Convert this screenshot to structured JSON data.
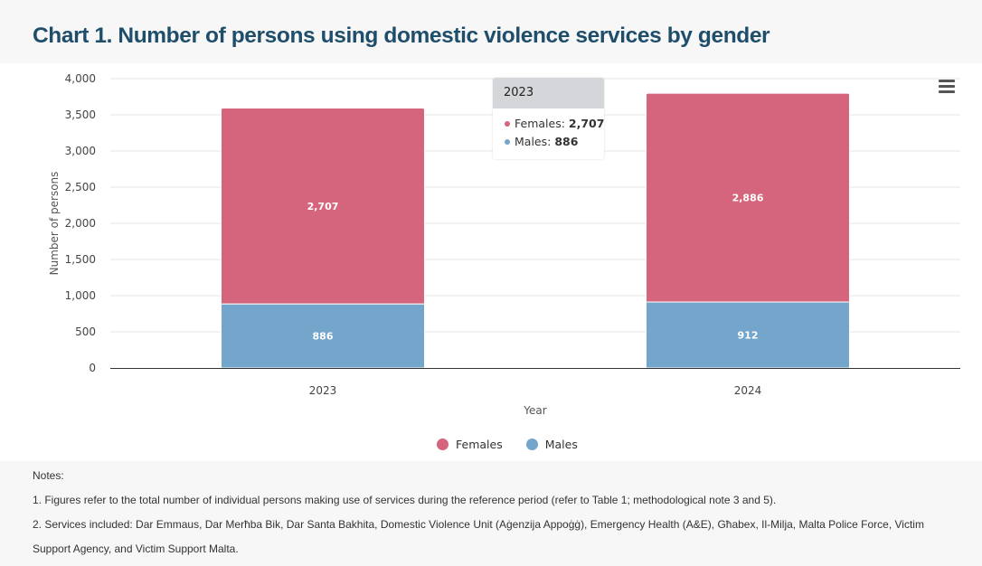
{
  "title": "Chart 1. Number of persons using domestic violence services by gender",
  "menu": {
    "icon": "hamburger-menu-icon"
  },
  "tooltip": {
    "header": "2023",
    "rows": [
      {
        "label": "Females: ",
        "value": "2,707"
      },
      {
        "label": "Males: ",
        "value": "886"
      }
    ]
  },
  "colors": {
    "females": "#d5657c",
    "males": "#74a5cb"
  },
  "chart_data": {
    "type": "bar",
    "stacked": true,
    "title": "Chart 1. Number of persons using domestic violence services by gender",
    "xlabel": "Year",
    "ylabel": "Number of persons",
    "categories": [
      "2023",
      "2024"
    ],
    "series": [
      {
        "name": "Males",
        "values": [
          886,
          912
        ],
        "labels": [
          "886",
          "912"
        ],
        "color": "#74a5cb"
      },
      {
        "name": "Females",
        "values": [
          2707,
          2886
        ],
        "labels": [
          "2,707",
          "2,886"
        ],
        "color": "#d5657c"
      }
    ],
    "ylim": [
      0,
      4000
    ],
    "yticks": [
      0,
      500,
      1000,
      1500,
      2000,
      2500,
      3000,
      3500,
      4000
    ],
    "ytick_labels": [
      "0",
      "500",
      "1,000",
      "1,500",
      "2,000",
      "2,500",
      "3,000",
      "3,500",
      "4,000"
    ],
    "grid": true,
    "legend": {
      "position": "bottom-center",
      "entries": [
        "Females",
        "Males"
      ]
    }
  },
  "legend": [
    {
      "label": "Females",
      "color": "#d5657c"
    },
    {
      "label": "Males",
      "color": "#74a5cb"
    }
  ],
  "notes": {
    "heading": "Notes:",
    "items": [
      "1. Figures refer to the total number of individual persons making use of services during the reference period (refer to Table 1; methodological note 3 and 5).",
      "2. Services included: Dar Emmaus, Dar Merħba Bik, Dar Santa Bakhita, Domestic Violence Unit (Aġenzija Appoġġ), Emergency Health (A&E), Għabex, Il-Milja, Malta Police Force, Victim Support Agency, and Victim Support Malta."
    ]
  }
}
